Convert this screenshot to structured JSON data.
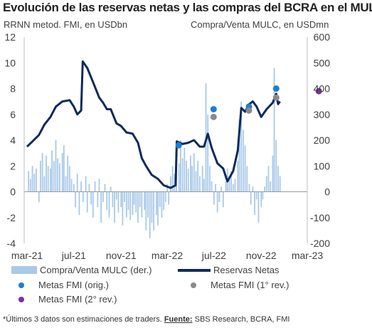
{
  "title": "Evolución de las reservas netas y las compras del BCRA en el MULC",
  "left_axis_label": "RRNN metod. FMI, en USDbn",
  "right_axis_label": "Compra/Venta MULC, en USDmn",
  "footnote": {
    "text": "*Últimos 3 datos son estimaciones de traders. ",
    "source_label": "Fuente:",
    "source_text": " SBS Research, BCRA, FMI"
  },
  "legend": {
    "bars": "Compra/Venta MULC (der.)",
    "line": "Reservas Netas",
    "orig": "Metas FMI (orig.)",
    "rev1": "Metas FMI (1° rev.)",
    "rev2": "Metas FMI (2° rev.)"
  },
  "colors": {
    "bars": "#a8c9e8",
    "line": "#0e2a5c",
    "orig": "#1a7fd0",
    "rev1": "#8a8a8a",
    "rev2": "#7b2fa0"
  },
  "chart_data": {
    "type": "line",
    "x_ticks": [
      "mar-21",
      "jul-21",
      "nov-21",
      "mar-22",
      "jul-22",
      "nov-22",
      "mar-23"
    ],
    "y_left": {
      "min": -4,
      "max": 12,
      "ticks": [
        -4,
        -2,
        0,
        2,
        4,
        6,
        8,
        10,
        12
      ]
    },
    "y_right": {
      "min": -200,
      "max": 600,
      "ticks": [
        "-200",
        "-100",
        "0",
        "100",
        "200",
        "300",
        "400",
        "500",
        "600"
      ]
    },
    "series": [
      {
        "name": "Reservas Netas",
        "axis": "left",
        "points": [
          [
            "2021-03-01",
            3.5
          ],
          [
            "2021-03-15",
            3.9
          ],
          [
            "2021-04-01",
            4.4
          ],
          [
            "2021-04-15",
            5.2
          ],
          [
            "2021-05-01",
            5.8
          ],
          [
            "2021-05-15",
            6.6
          ],
          [
            "2021-06-01",
            7.0
          ],
          [
            "2021-06-20",
            7.1
          ],
          [
            "2021-07-01",
            6.6
          ],
          [
            "2021-07-10",
            6.0
          ],
          [
            "2021-07-20",
            6.3
          ],
          [
            "2021-07-24",
            10.1
          ],
          [
            "2021-08-05",
            9.6
          ],
          [
            "2021-08-20",
            8.5
          ],
          [
            "2021-09-05",
            7.3
          ],
          [
            "2021-09-15",
            6.9
          ],
          [
            "2021-09-25",
            6.4
          ],
          [
            "2021-10-05",
            6.4
          ],
          [
            "2021-10-20",
            5.3
          ],
          [
            "2021-11-01",
            5.1
          ],
          [
            "2021-11-15",
            4.6
          ],
          [
            "2021-12-01",
            4.5
          ],
          [
            "2021-12-15",
            3.8
          ],
          [
            "2021-12-25",
            2.6
          ],
          [
            "2022-01-05",
            2.0
          ],
          [
            "2022-01-20",
            1.3
          ],
          [
            "2022-02-05",
            1.0
          ],
          [
            "2022-02-20",
            0.5
          ],
          [
            "2022-03-10",
            0.3
          ],
          [
            "2022-03-23",
            0.5
          ],
          [
            "2022-03-26",
            3.9
          ],
          [
            "2022-04-10",
            3.7
          ],
          [
            "2022-04-25",
            3.8
          ],
          [
            "2022-05-10",
            4.0
          ],
          [
            "2022-05-25",
            3.5
          ],
          [
            "2022-06-05",
            3.5
          ],
          [
            "2022-06-15",
            4.5
          ],
          [
            "2022-06-25",
            3.4
          ],
          [
            "2022-07-10",
            2.2
          ],
          [
            "2022-07-25",
            1.8
          ],
          [
            "2022-08-05",
            0.8
          ],
          [
            "2022-08-20",
            1.6
          ],
          [
            "2022-09-01",
            3.2
          ],
          [
            "2022-09-10",
            6.5
          ],
          [
            "2022-09-20",
            6.2
          ],
          [
            "2022-10-01",
            6.8
          ],
          [
            "2022-10-10",
            7.0
          ],
          [
            "2022-10-20",
            6.6
          ],
          [
            "2022-11-01",
            5.8
          ],
          [
            "2022-11-15",
            6.4
          ],
          [
            "2022-12-01",
            6.9
          ],
          [
            "2022-12-10",
            7.6
          ],
          [
            "2022-12-15",
            6.8
          ],
          [
            "2022-12-20",
            7.0
          ]
        ]
      },
      {
        "name": "Compra/Venta MULC (der.)",
        "axis": "right",
        "type": "bar",
        "points": [
          [
            "2021-03-05",
            80
          ],
          [
            "2021-03-10",
            50
          ],
          [
            "2021-03-15",
            100
          ],
          [
            "2021-03-20",
            70
          ],
          [
            "2021-03-25",
            90
          ],
          [
            "2021-04-01",
            -40
          ],
          [
            "2021-04-05",
            120
          ],
          [
            "2021-04-10",
            150
          ],
          [
            "2021-04-15",
            60
          ],
          [
            "2021-04-20",
            140
          ],
          [
            "2021-04-25",
            100
          ],
          [
            "2021-05-01",
            90
          ],
          [
            "2021-05-05",
            160
          ],
          [
            "2021-05-10",
            120
          ],
          [
            "2021-05-15",
            200
          ],
          [
            "2021-05-20",
            130
          ],
          [
            "2021-05-25",
            110
          ],
          [
            "2021-06-01",
            150
          ],
          [
            "2021-06-05",
            180
          ],
          [
            "2021-06-10",
            60
          ],
          [
            "2021-06-15",
            140
          ],
          [
            "2021-06-20",
            100
          ],
          [
            "2021-06-25",
            50
          ],
          [
            "2021-07-01",
            30
          ],
          [
            "2021-07-05",
            -60
          ],
          [
            "2021-07-10",
            70
          ],
          [
            "2021-07-15",
            -90
          ],
          [
            "2021-07-20",
            40
          ],
          [
            "2021-07-25",
            -40
          ],
          [
            "2021-08-01",
            60
          ],
          [
            "2021-08-05",
            -80
          ],
          [
            "2021-08-10",
            30
          ],
          [
            "2021-08-15",
            -50
          ],
          [
            "2021-08-20",
            -100
          ],
          [
            "2021-08-25",
            40
          ],
          [
            "2021-09-01",
            -60
          ],
          [
            "2021-09-05",
            50
          ],
          [
            "2021-09-10",
            -120
          ],
          [
            "2021-09-15",
            -40
          ],
          [
            "2021-09-20",
            30
          ],
          [
            "2021-09-25",
            -70
          ],
          [
            "2021-10-01",
            -100
          ],
          [
            "2021-10-05",
            20
          ],
          [
            "2021-10-10",
            -60
          ],
          [
            "2021-10-15",
            -120
          ],
          [
            "2021-10-20",
            -30
          ],
          [
            "2021-10-25",
            -80
          ],
          [
            "2021-11-01",
            -60
          ],
          [
            "2021-11-05",
            -130
          ],
          [
            "2021-11-10",
            -40
          ],
          [
            "2021-11-15",
            -100
          ],
          [
            "2021-11-20",
            -70
          ],
          [
            "2021-11-25",
            -110
          ],
          [
            "2021-12-01",
            -90
          ],
          [
            "2021-12-05",
            -50
          ],
          [
            "2021-12-10",
            -80
          ],
          [
            "2021-12-15",
            -120
          ],
          [
            "2021-12-20",
            -60
          ],
          [
            "2021-12-25",
            -100
          ],
          [
            "2022-01-01",
            -70
          ],
          [
            "2022-01-05",
            -150
          ],
          [
            "2022-01-10",
            -100
          ],
          [
            "2022-01-15",
            -180
          ],
          [
            "2022-01-20",
            -120
          ],
          [
            "2022-01-25",
            -150
          ],
          [
            "2022-02-01",
            -90
          ],
          [
            "2022-02-05",
            -130
          ],
          [
            "2022-02-10",
            -60
          ],
          [
            "2022-02-15",
            -100
          ],
          [
            "2022-02-20",
            -70
          ],
          [
            "2022-02-25",
            -40
          ],
          [
            "2022-03-01",
            30
          ],
          [
            "2022-03-05",
            -50
          ],
          [
            "2022-03-10",
            60
          ],
          [
            "2022-03-15",
            100
          ],
          [
            "2022-03-20",
            70
          ],
          [
            "2022-03-25",
            150
          ],
          [
            "2022-04-01",
            110
          ],
          [
            "2022-04-05",
            200
          ],
          [
            "2022-04-10",
            130
          ],
          [
            "2022-04-15",
            170
          ],
          [
            "2022-04-20",
            120
          ],
          [
            "2022-04-25",
            90
          ],
          [
            "2022-05-01",
            140
          ],
          [
            "2022-05-05",
            100
          ],
          [
            "2022-05-10",
            150
          ],
          [
            "2022-05-15",
            80
          ],
          [
            "2022-05-20",
            120
          ],
          [
            "2022-05-25",
            60
          ],
          [
            "2022-06-01",
            100
          ],
          [
            "2022-06-05",
            50
          ],
          [
            "2022-06-10",
            420
          ],
          [
            "2022-06-15",
            300
          ],
          [
            "2022-06-20",
            100
          ],
          [
            "2022-06-25",
            40
          ],
          [
            "2022-07-01",
            -50
          ],
          [
            "2022-07-05",
            30
          ],
          [
            "2022-07-10",
            -80
          ],
          [
            "2022-07-15",
            -40
          ],
          [
            "2022-07-20",
            20
          ],
          [
            "2022-07-25",
            -60
          ],
          [
            "2022-08-01",
            40
          ],
          [
            "2022-08-05",
            90
          ],
          [
            "2022-08-10",
            60
          ],
          [
            "2022-08-15",
            80
          ],
          [
            "2022-08-20",
            30
          ],
          [
            "2022-08-25",
            50
          ],
          [
            "2022-09-01",
            120
          ],
          [
            "2022-09-05",
            280
          ],
          [
            "2022-09-10",
            350
          ],
          [
            "2022-09-15",
            240
          ],
          [
            "2022-09-20",
            180
          ],
          [
            "2022-09-25",
            100
          ],
          [
            "2022-10-01",
            30
          ],
          [
            "2022-10-05",
            -50
          ],
          [
            "2022-10-10",
            20
          ],
          [
            "2022-10-15",
            -90
          ],
          [
            "2022-10-20",
            -30
          ],
          [
            "2022-10-25",
            -120
          ],
          [
            "2022-11-01",
            -60
          ],
          [
            "2022-11-05",
            -30
          ],
          [
            "2022-11-10",
            20
          ],
          [
            "2022-11-15",
            60
          ],
          [
            "2022-11-20",
            100
          ],
          [
            "2022-11-25",
            40
          ],
          [
            "2022-12-01",
            140
          ],
          [
            "2022-12-05",
            480
          ],
          [
            "2022-12-10",
            200
          ],
          [
            "2022-12-15",
            100
          ],
          [
            "2022-12-20",
            60
          ]
        ]
      },
      {
        "name": "Metas FMI (orig.)",
        "axis": "left",
        "type": "scatter",
        "points": [
          [
            "2022-03-31",
            3.6
          ],
          [
            "2022-06-30",
            6.4
          ],
          [
            "2022-09-30",
            6.6
          ],
          [
            "2022-12-10",
            8.0
          ]
        ]
      },
      {
        "name": "Metas FMI (1° rev.)",
        "axis": "left",
        "type": "scatter",
        "points": [
          [
            "2022-06-30",
            5.8
          ],
          [
            "2022-09-30",
            6.3
          ],
          [
            "2022-12-10",
            7.3
          ]
        ]
      },
      {
        "name": "Metas FMI (2° rev.)",
        "axis": "left",
        "type": "scatter",
        "points": [
          [
            "2023-03-31",
            7.8
          ]
        ]
      }
    ]
  }
}
